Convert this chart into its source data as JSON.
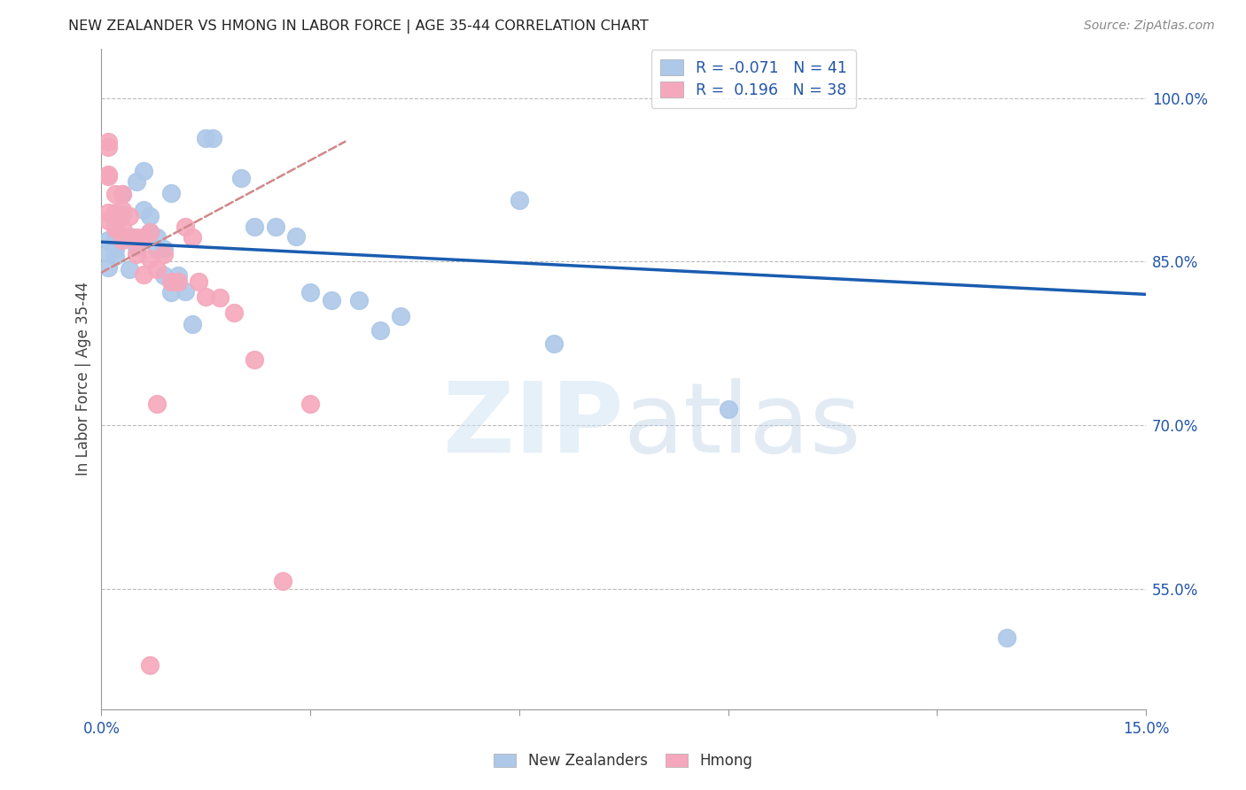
{
  "title": "NEW ZEALANDER VS HMONG IN LABOR FORCE | AGE 35-44 CORRELATION CHART",
  "source": "Source: ZipAtlas.com",
  "ylabel": "In Labor Force | Age 35-44",
  "xlim": [
    0.0,
    0.15
  ],
  "ylim": [
    0.44,
    1.045
  ],
  "yticks_right": [
    0.55,
    0.7,
    0.85,
    1.0
  ],
  "ytick_labels_right": [
    "55.0%",
    "70.0%",
    "85.0%",
    "100.0%"
  ],
  "legend_nz_r": "-0.071",
  "legend_nz_n": "41",
  "legend_hmong_r": "0.196",
  "legend_hmong_n": "38",
  "nz_color": "#adc8e8",
  "hmong_color": "#f5a8bc",
  "nz_line_color": "#1a5cb0",
  "hmong_line_color": "#d08888",
  "nz_line_x0": 0.0,
  "nz_line_y0": 0.868,
  "nz_line_x1": 0.15,
  "nz_line_y1": 0.82,
  "hmong_line_x0": 0.0,
  "hmong_line_y0": 0.84,
  "hmong_line_x1": 0.035,
  "hmong_line_y1": 0.96,
  "nz_x": [
    0.001,
    0.001,
    0.001,
    0.002,
    0.002,
    0.002,
    0.002,
    0.003,
    0.003,
    0.004,
    0.004,
    0.005,
    0.005,
    0.006,
    0.006,
    0.007,
    0.007,
    0.008,
    0.008,
    0.009,
    0.009,
    0.01,
    0.01,
    0.011,
    0.012,
    0.013,
    0.015,
    0.016,
    0.02,
    0.022,
    0.025,
    0.028,
    0.03,
    0.033,
    0.037,
    0.04,
    0.043,
    0.06,
    0.065,
    0.09,
    0.13
  ],
  "nz_y": [
    0.87,
    0.858,
    0.845,
    0.885,
    0.873,
    0.862,
    0.855,
    0.912,
    0.893,
    0.873,
    0.843,
    0.923,
    0.863,
    0.933,
    0.897,
    0.892,
    0.877,
    0.872,
    0.862,
    0.862,
    0.837,
    0.913,
    0.822,
    0.837,
    0.823,
    0.793,
    0.963,
    0.963,
    0.927,
    0.882,
    0.882,
    0.873,
    0.822,
    0.815,
    0.815,
    0.787,
    0.8,
    0.906,
    0.775,
    0.715,
    0.505
  ],
  "hmong_x": [
    0.001,
    0.001,
    0.001,
    0.001,
    0.001,
    0.001,
    0.002,
    0.002,
    0.002,
    0.002,
    0.003,
    0.003,
    0.003,
    0.003,
    0.004,
    0.004,
    0.005,
    0.005,
    0.006,
    0.006,
    0.006,
    0.007,
    0.007,
    0.008,
    0.008,
    0.009,
    0.01,
    0.011,
    0.012,
    0.013,
    0.014,
    0.015,
    0.017,
    0.019,
    0.022,
    0.026,
    0.03,
    0.007
  ],
  "hmong_y": [
    0.96,
    0.955,
    0.93,
    0.928,
    0.895,
    0.888,
    0.912,
    0.895,
    0.882,
    0.88,
    0.912,
    0.897,
    0.882,
    0.87,
    0.892,
    0.872,
    0.872,
    0.857,
    0.872,
    0.872,
    0.838,
    0.877,
    0.853,
    0.843,
    0.72,
    0.857,
    0.832,
    0.832,
    0.882,
    0.872,
    0.832,
    0.818,
    0.817,
    0.803,
    0.76,
    0.557,
    0.72,
    0.48
  ]
}
